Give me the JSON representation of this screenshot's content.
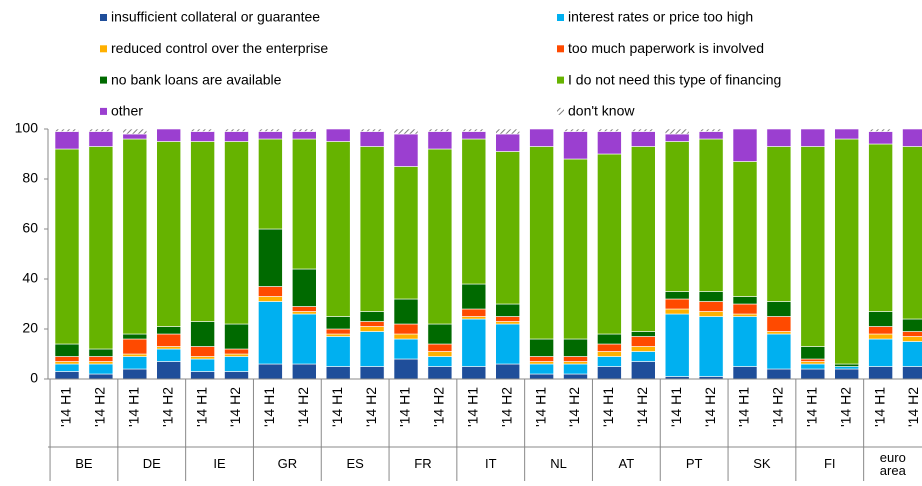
{
  "chart_data": {
    "type": "stacked-bar",
    "legend": "top",
    "ylim": [
      0,
      100
    ],
    "yticks": [
      0,
      20,
      40,
      60,
      80,
      100
    ],
    "groups": [
      "BE",
      "DE",
      "IE",
      "GR",
      "ES",
      "FR",
      "IT",
      "NL",
      "AT",
      "PT",
      "SK",
      "FI",
      "euro area"
    ],
    "categories": [
      "'14 H1",
      "'14 H2",
      "'14 H1",
      "'14 H2",
      "'14 H1",
      "'14 H2",
      "'14 H1",
      "'14 H2",
      "'14 H1",
      "'14 H2",
      "'14 H1",
      "'14 H2",
      "'14 H1",
      "'14 H2",
      "'14 H1",
      "'14 H2",
      "'14 H1",
      "'14 H2",
      "'14 H1",
      "'14 H2",
      "'14 H1",
      "'14 H2",
      "'14 H1",
      "'14 H2",
      "'14 H1",
      "'14 H2"
    ],
    "series": [
      {
        "name": "insufficient collateral or guarantee",
        "color": "#1f4e9a",
        "values": [
          3,
          2,
          4,
          7,
          3,
          3,
          6,
          6,
          5,
          5,
          8,
          5,
          5,
          6,
          2,
          2,
          5,
          7,
          1,
          1,
          5,
          4,
          4,
          4,
          5,
          5
        ]
      },
      {
        "name": "interest rates or price too high",
        "color": "#00b0f0",
        "values": [
          3,
          4,
          5,
          5,
          5,
          6,
          25,
          20,
          12,
          14,
          8,
          4,
          19,
          16,
          4,
          4,
          4,
          4,
          25,
          24,
          20,
          14,
          2,
          1,
          11,
          10
        ]
      },
      {
        "name": "reduced control over the enterprise",
        "color": "#ffb000",
        "values": [
          1,
          1,
          1,
          1,
          1,
          1,
          2,
          1,
          1,
          2,
          2,
          2,
          1,
          1,
          1,
          1,
          2,
          2,
          2,
          2,
          1,
          1,
          1,
          0,
          2,
          2
        ]
      },
      {
        "name": "too much paperwork is involved",
        "color": "#ff4a00",
        "values": [
          2,
          2,
          6,
          5,
          4,
          2,
          4,
          2,
          2,
          2,
          4,
          3,
          3,
          2,
          2,
          2,
          3,
          4,
          4,
          4,
          4,
          6,
          1,
          0,
          3,
          2
        ]
      },
      {
        "name": "no bank loans are available",
        "color": "#006a00",
        "values": [
          5,
          3,
          2,
          3,
          10,
          10,
          23,
          15,
          5,
          4,
          10,
          8,
          10,
          5,
          7,
          7,
          4,
          2,
          3,
          4,
          3,
          6,
          5,
          1,
          6,
          5
        ]
      },
      {
        "name": "I do not need this type of financing",
        "color": "#66b300",
        "values": [
          78,
          81,
          78,
          74,
          72,
          73,
          36,
          52,
          70,
          66,
          53,
          70,
          58,
          61,
          77,
          72,
          72,
          74,
          60,
          61,
          54,
          62,
          80,
          90,
          67,
          69
        ]
      },
      {
        "name": "other",
        "color": "#9b3fd0",
        "values": [
          7,
          6,
          2,
          5,
          4,
          4,
          3,
          3,
          5,
          6,
          13,
          7,
          3,
          7,
          7,
          11,
          9,
          6,
          3,
          3,
          13,
          7,
          7,
          4,
          5,
          7
        ]
      },
      {
        "name": "don't know",
        "color": "#7f7f7f",
        "values": [
          1,
          1,
          2,
          0,
          1,
          1,
          1,
          1,
          0,
          1,
          2,
          1,
          1,
          2,
          0,
          1,
          1,
          1,
          2,
          1,
          0,
          0,
          0,
          0,
          1,
          0
        ]
      }
    ]
  }
}
